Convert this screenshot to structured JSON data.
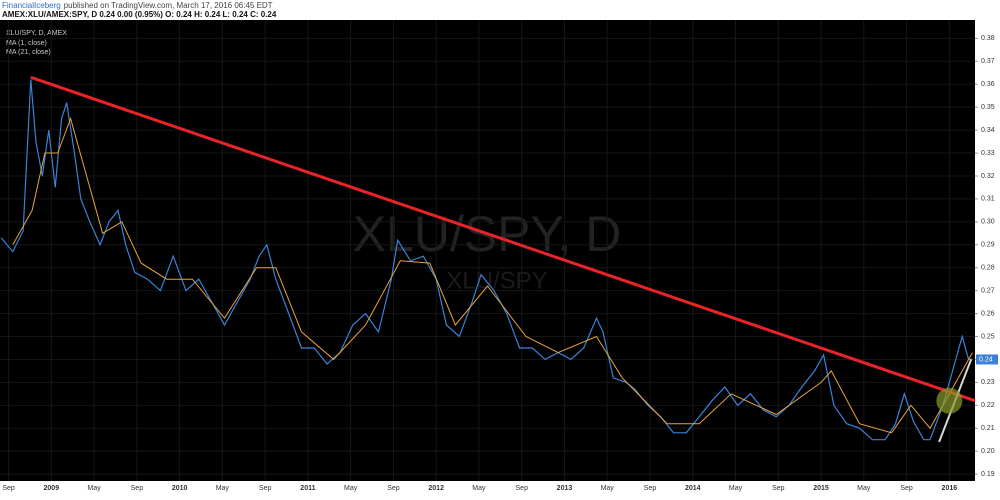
{
  "header": {
    "publisher": "FinancialIceberg",
    "published": "published on TradingView.com, March 17, 2016 06:45 EDT",
    "symbol_line": "AMEX:XLU/AMEX:SPY, D  0.24 0.00 (0.95%) O: 0.24 H: 0.24 L: 0.24 C: 0.24"
  },
  "chart_data": {
    "type": "line",
    "title": "XLU/SPY, D, AMEX",
    "watermark": "XLU/SPY, D",
    "watermark_sub": "XLU/SPY",
    "series": [
      {
        "name": "MA (1, close)",
        "color": "#3b82d6",
        "x": [
          2008.61,
          2008.7,
          2008.78,
          2008.84,
          2008.88,
          2008.93,
          2008.98,
          2009.03,
          2009.08,
          2009.12,
          2009.18,
          2009.23,
          2009.3,
          2009.38,
          2009.45,
          2009.52,
          2009.58,
          2009.65,
          2009.75,
          2009.85,
          2009.95,
          2010.05,
          2010.15,
          2010.25,
          2010.35,
          2010.45,
          2010.55,
          2010.62,
          2010.68,
          2010.75,
          2010.85,
          2010.95,
          2011.05,
          2011.15,
          2011.25,
          2011.35,
          2011.45,
          2011.55,
          2011.65,
          2011.7,
          2011.8,
          2011.9,
          2012.0,
          2012.08,
          2012.18,
          2012.28,
          2012.35,
          2012.45,
          2012.55,
          2012.65,
          2012.75,
          2012.85,
          2012.95,
          2013.05,
          2013.15,
          2013.25,
          2013.3,
          2013.38,
          2013.48,
          2013.55,
          2013.65,
          2013.75,
          2013.85,
          2013.95,
          2014.05,
          2014.15,
          2014.25,
          2014.35,
          2014.45,
          2014.55,
          2014.65,
          2014.75,
          2014.85,
          2014.95,
          2015.02,
          2015.1,
          2015.2,
          2015.3,
          2015.4,
          2015.5,
          2015.58,
          2015.65,
          2015.72,
          2015.8,
          2015.85,
          2015.95,
          2016.05,
          2016.1,
          2016.15,
          2016.18
        ],
        "values": [
          0.293,
          0.287,
          0.296,
          0.362,
          0.335,
          0.32,
          0.34,
          0.315,
          0.345,
          0.352,
          0.33,
          0.31,
          0.3,
          0.29,
          0.3,
          0.305,
          0.29,
          0.278,
          0.275,
          0.27,
          0.285,
          0.27,
          0.275,
          0.265,
          0.255,
          0.265,
          0.275,
          0.285,
          0.29,
          0.275,
          0.26,
          0.245,
          0.245,
          0.238,
          0.243,
          0.255,
          0.26,
          0.252,
          0.275,
          0.292,
          0.283,
          0.285,
          0.275,
          0.255,
          0.25,
          0.265,
          0.277,
          0.27,
          0.26,
          0.245,
          0.245,
          0.24,
          0.243,
          0.24,
          0.245,
          0.258,
          0.252,
          0.232,
          0.23,
          0.227,
          0.22,
          0.215,
          0.208,
          0.208,
          0.215,
          0.222,
          0.228,
          0.22,
          0.225,
          0.218,
          0.215,
          0.22,
          0.228,
          0.235,
          0.242,
          0.22,
          0.212,
          0.21,
          0.205,
          0.205,
          0.212,
          0.225,
          0.213,
          0.205,
          0.205,
          0.22,
          0.24,
          0.25,
          0.24,
          0.24
        ]
      },
      {
        "name": "MA (21, close)",
        "color": "#e8a33a",
        "x": [
          2008.7,
          2008.85,
          2008.95,
          2009.05,
          2009.15,
          2009.25,
          2009.4,
          2009.55,
          2009.7,
          2009.9,
          2010.1,
          2010.35,
          2010.6,
          2010.75,
          2010.95,
          2011.2,
          2011.45,
          2011.72,
          2011.95,
          2012.15,
          2012.4,
          2012.7,
          2012.95,
          2013.25,
          2013.45,
          2013.8,
          2014.05,
          2014.3,
          2014.65,
          2015.0,
          2015.08,
          2015.3,
          2015.55,
          2015.7,
          2015.85,
          2016.05,
          2016.18
        ],
        "values": [
          0.29,
          0.305,
          0.33,
          0.33,
          0.345,
          0.325,
          0.295,
          0.3,
          0.282,
          0.275,
          0.275,
          0.258,
          0.28,
          0.28,
          0.252,
          0.24,
          0.255,
          0.283,
          0.282,
          0.255,
          0.272,
          0.25,
          0.243,
          0.25,
          0.232,
          0.212,
          0.212,
          0.225,
          0.216,
          0.23,
          0.235,
          0.212,
          0.208,
          0.22,
          0.21,
          0.23,
          0.243
        ]
      }
    ],
    "trendlines": [
      {
        "color": "#e8232a",
        "x": [
          2008.84,
          2016.2
        ],
        "values": [
          0.363,
          0.222
        ]
      },
      {
        "color": "#d8d8d8",
        "x": [
          2015.92,
          2016.17
        ],
        "values": [
          0.204,
          0.24
        ]
      }
    ],
    "highlight": {
      "color": "#8a9a2a",
      "x": 2016.0,
      "value": 0.222
    },
    "last_value": 0.24,
    "xlim": [
      2008.6,
      2016.2
    ],
    "xticks": [
      {
        "value": 2008.667,
        "label": "Sep"
      },
      2009,
      {
        "value": 2009.333,
        "label": "May"
      },
      {
        "value": 2009.667,
        "label": "Sep"
      },
      2010,
      {
        "value": 2010.333,
        "label": "May"
      },
      {
        "value": 2010.667,
        "label": "Sep"
      },
      2011,
      {
        "value": 2011.333,
        "label": "May"
      },
      {
        "value": 2011.667,
        "label": "Sep"
      },
      2012,
      {
        "value": 2012.333,
        "label": "May"
      },
      {
        "value": 2012.667,
        "label": "Sep"
      },
      2013,
      {
        "value": 2013.333,
        "label": "May"
      },
      {
        "value": 2013.667,
        "label": "Sep"
      },
      2014,
      {
        "value": 2014.333,
        "label": "May"
      },
      {
        "value": 2014.667,
        "label": "Sep"
      },
      2015,
      {
        "value": 2015.333,
        "label": "May"
      },
      {
        "value": 2015.667,
        "label": "Sep"
      },
      2016
    ],
    "ylim": [
      0.187,
      0.388
    ],
    "yticks": [
      0.19,
      {
        "value": 0.2,
        "label": "0.20"
      },
      0.21,
      0.22,
      0.23,
      0.24,
      0.25,
      0.26,
      0.27,
      0.28,
      0.29,
      {
        "value": 0.3,
        "label": "0.30"
      },
      0.31,
      0.32,
      0.33,
      0.34,
      0.35,
      0.36,
      0.37,
      0.38
    ],
    "grid": true
  }
}
